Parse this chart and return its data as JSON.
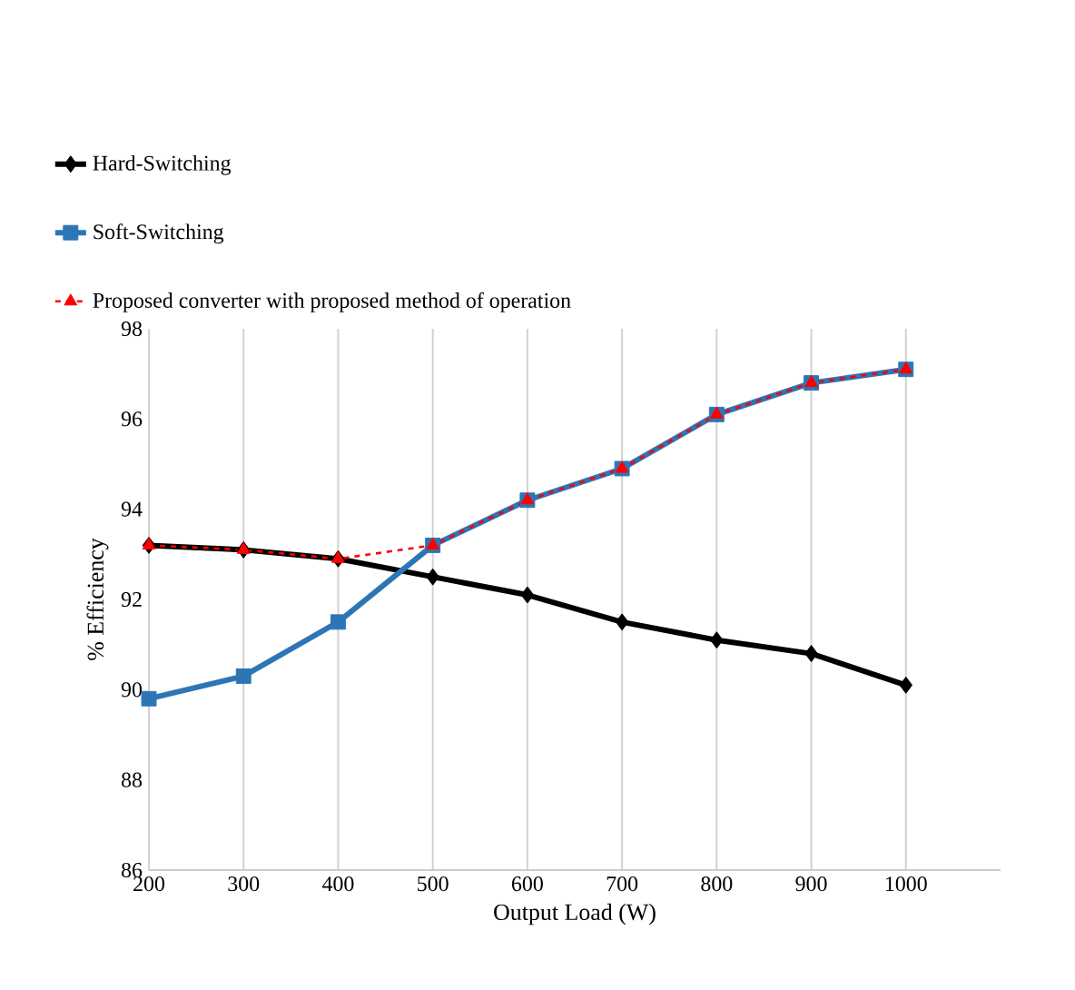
{
  "chart_data": {
    "type": "line",
    "xlabel": "Output Load (W)",
    "ylabel": "% Efficiency",
    "x": [
      200,
      300,
      400,
      500,
      600,
      700,
      800,
      900,
      1000
    ],
    "series": [
      {
        "name": "Hard-Switching",
        "color": "#000000",
        "marker": "diamond",
        "line_style": "solid",
        "values": [
          93.2,
          93.1,
          92.9,
          92.5,
          92.1,
          91.5,
          91.1,
          90.8,
          90.1
        ]
      },
      {
        "name": "Soft-Switching",
        "color": "#2e75b6",
        "marker": "square",
        "line_style": "solid",
        "values": [
          89.8,
          90.3,
          91.5,
          93.2,
          94.2,
          94.9,
          96.1,
          96.8,
          97.1
        ]
      },
      {
        "name": "Proposed converter with proposed method of operation",
        "color": "#ff0000",
        "marker": "triangle",
        "line_style": "dashed",
        "values": [
          93.2,
          93.1,
          92.9,
          93.2,
          94.2,
          94.9,
          96.1,
          96.8,
          97.1
        ]
      }
    ],
    "xlim": [
      200,
      1100
    ],
    "xticks": [
      200,
      300,
      400,
      500,
      600,
      700,
      800,
      900,
      1000
    ],
    "ylim": [
      86,
      98
    ],
    "yticks": [
      86,
      88,
      90,
      92,
      94,
      96,
      98
    ],
    "grid": "x",
    "legend": "top"
  }
}
